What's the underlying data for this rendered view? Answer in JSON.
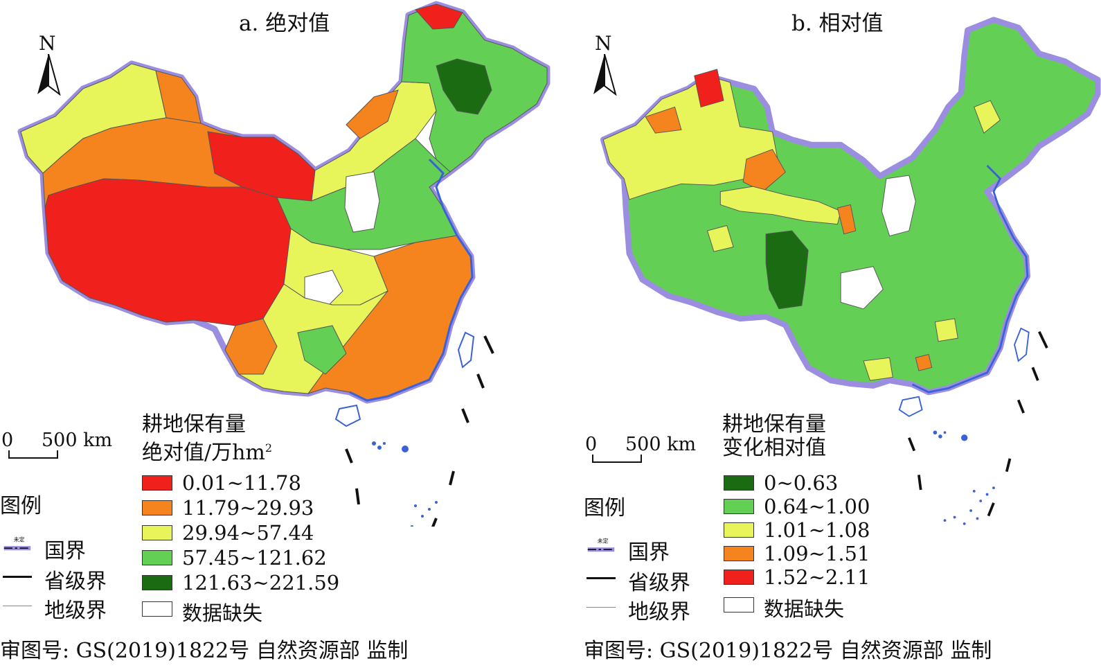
{
  "panels": [
    {
      "id": "a",
      "title": "a. 绝对值",
      "legend_title_line1": "耕地保有量",
      "legend_title_line2": "绝对值/万hm",
      "legend_title_sup": "2",
      "classes": [
        {
          "label": "0.01~11.78",
          "color": "#f0201c"
        },
        {
          "label": "11.79~29.93",
          "color": "#f5841f"
        },
        {
          "label": "29.94~57.44",
          "color": "#e8f55a"
        },
        {
          "label": "57.45~121.62",
          "color": "#63cf55"
        },
        {
          "label": "121.63~221.59",
          "color": "#1a6b12"
        },
        {
          "label": "数据缺失",
          "color": "#ffffff"
        }
      ]
    },
    {
      "id": "b",
      "title": "b. 相对值",
      "legend_title_line1": "耕地保有量",
      "legend_title_line2": "变化相对值",
      "legend_title_sup": "",
      "classes": [
        {
          "label": "0~0.63",
          "color": "#1a6b12"
        },
        {
          "label": "0.64~1.00",
          "color": "#63cf55"
        },
        {
          "label": "1.01~1.08",
          "color": "#e8f55a"
        },
        {
          "label": "1.09~1.51",
          "color": "#f5841f"
        },
        {
          "label": "1.52~2.11",
          "color": "#f0201c"
        },
        {
          "label": "数据缺失",
          "color": "#ffffff"
        }
      ]
    }
  ],
  "common": {
    "north_label": "N",
    "scale_zero": "0",
    "scale_distance": "500 km",
    "legend_heading": "图例",
    "boundary_national": "国界",
    "boundary_undetermined_tag": "未定",
    "boundary_province": "省级界",
    "boundary_prefecture": "地级界",
    "footer": "审图号: GS(2019)1822号 自然资源部 监制"
  },
  "colors": {
    "border_glow": "#9b8ddf",
    "coast_blue": "#3a62d6",
    "province_line": "#222222",
    "prefecture_line": "#555555"
  }
}
